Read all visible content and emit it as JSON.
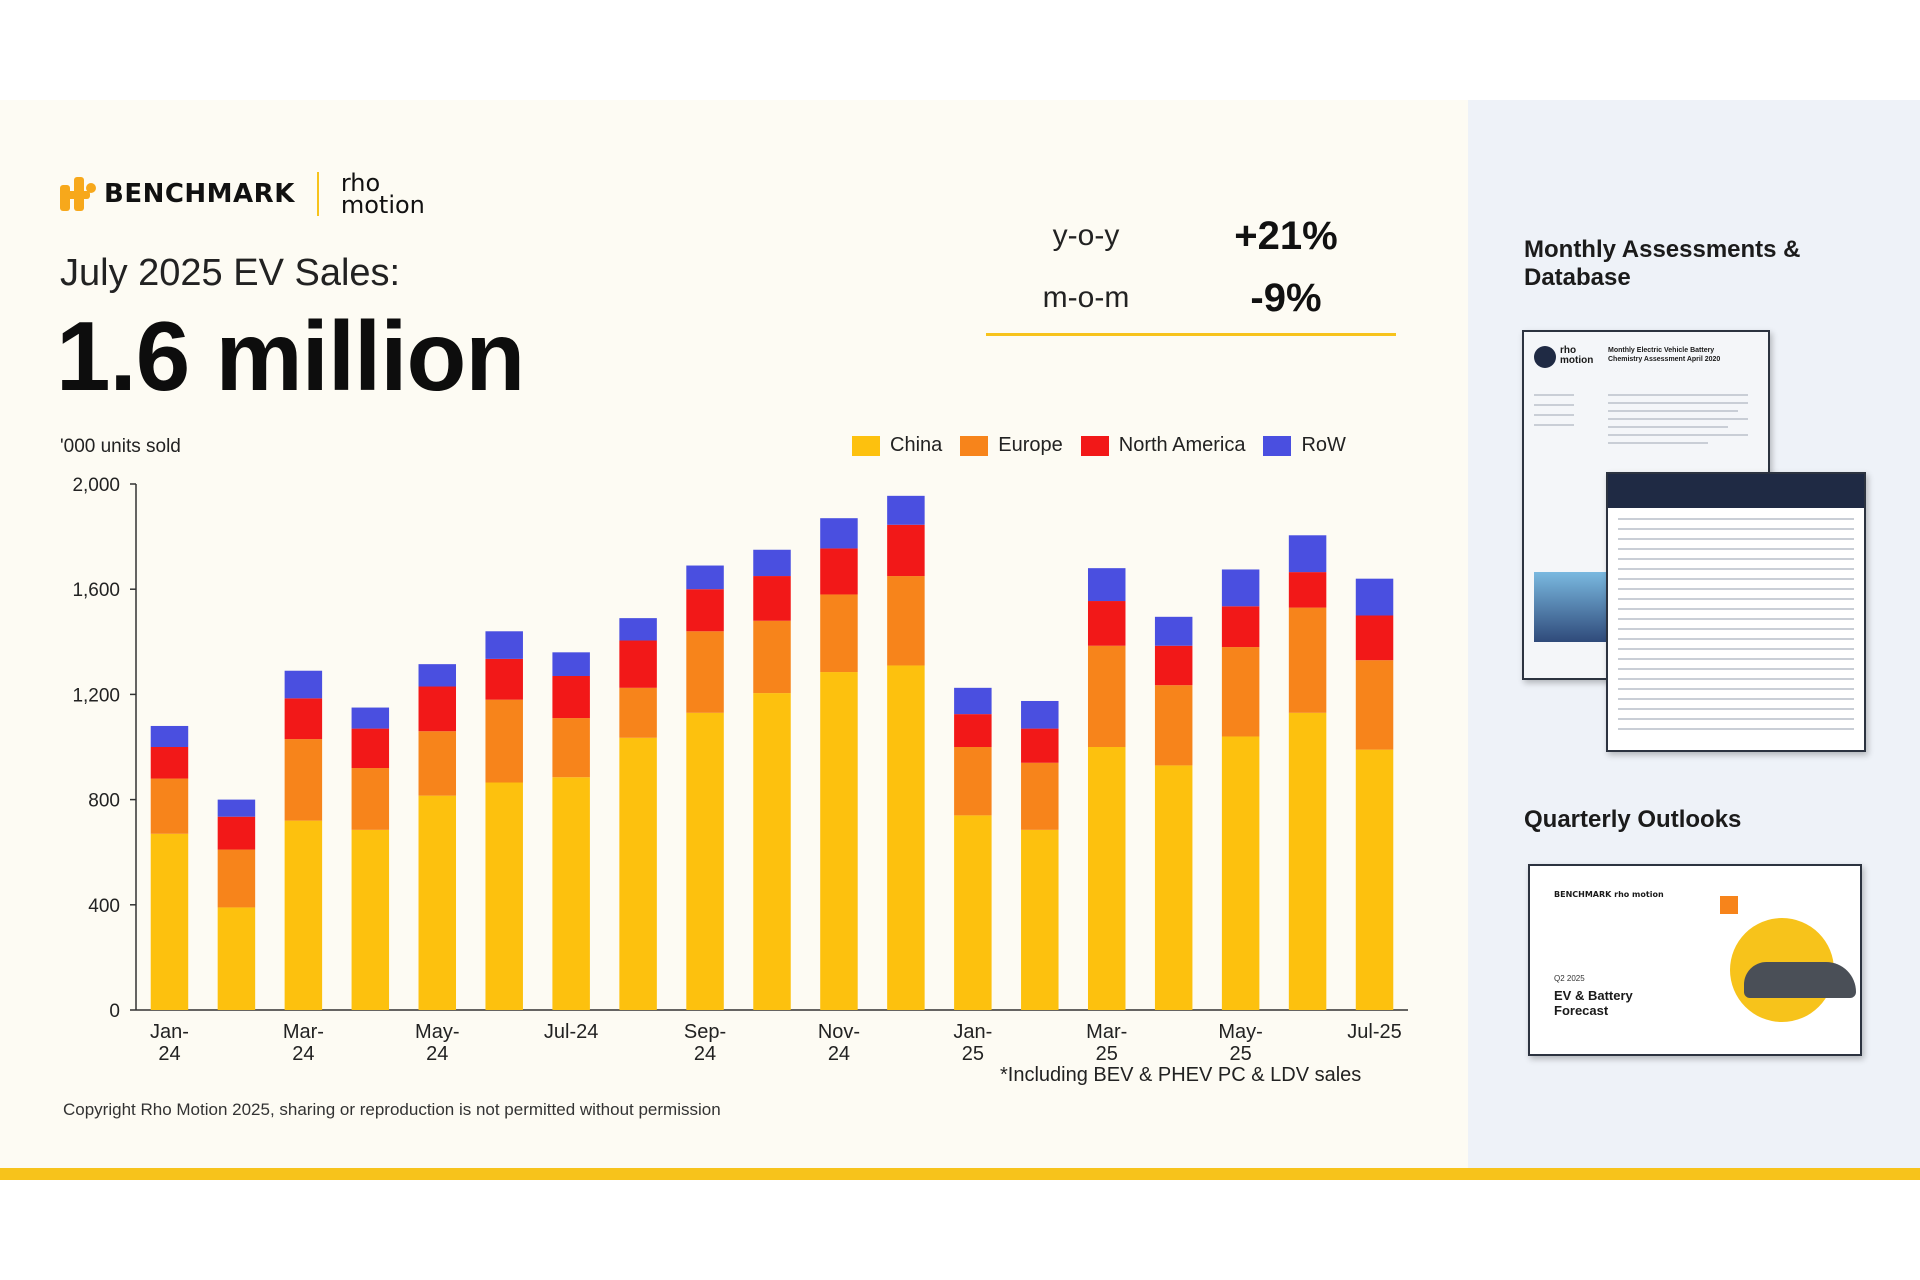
{
  "brand": {
    "benchmark": "BENCHMARK",
    "rho_line1": "rho",
    "rho_line2": "motion"
  },
  "headline": {
    "subtitle": "July 2025 EV Sales:",
    "value": "1.6 million"
  },
  "kpis": [
    {
      "label": "y-o-y",
      "value": "+21%"
    },
    {
      "label": "m-o-m",
      "value": "-9%"
    }
  ],
  "units_label": "'000 units sold",
  "footnote": "*Including BEV & PHEV PC & LDV sales",
  "copyright": "Copyright Rho Motion 2025, sharing or reproduction is not permitted without permission",
  "right_panel": {
    "title1": "Monthly Assessments & Database",
    "title2": "Quarterly Outlooks",
    "doc1_logo": "rho motion",
    "doc1_heading": "Monthly Electric Vehicle Battery Chemistry Assessment April 2020",
    "cover_logo": "BENCHMARK  rho motion",
    "cover_q": "Q2 2025",
    "cover_title": "EV & Battery Forecast"
  },
  "colors": {
    "China": "#fdc10e",
    "Europe": "#f7841b",
    "North America": "#f21818",
    "RoW": "#4a4fe0",
    "accent": "#f7c31b"
  },
  "chart_data": {
    "type": "bar",
    "stacked": true,
    "ylabel": "'000 units sold",
    "ylim": [
      0,
      2000
    ],
    "yticks": [
      0,
      400,
      800,
      1200,
      1600,
      2000
    ],
    "ytick_labels": [
      "0",
      "400",
      "800",
      "1,200",
      "1,600",
      "2,000"
    ],
    "categories": [
      "Jan-24",
      "Feb-24",
      "Mar-24",
      "Apr-24",
      "May-24",
      "Jun-24",
      "Jul-24",
      "Aug-24",
      "Sep-24",
      "Oct-24",
      "Nov-24",
      "Dec-24",
      "Jan-25",
      "Feb-25",
      "Mar-25",
      "Apr-25",
      "May-25",
      "Jun-25",
      "Jul-25"
    ],
    "xtick_labels": [
      {
        "index": 0,
        "line1": "Jan-",
        "line2": "24"
      },
      {
        "index": 2,
        "line1": "Mar-",
        "line2": "24"
      },
      {
        "index": 4,
        "line1": "May-",
        "line2": "24"
      },
      {
        "index": 6,
        "line1": "Jul-24",
        "line2": ""
      },
      {
        "index": 8,
        "line1": "Sep-",
        "line2": "24"
      },
      {
        "index": 10,
        "line1": "Nov-",
        "line2": "24"
      },
      {
        "index": 12,
        "line1": "Jan-",
        "line2": "25"
      },
      {
        "index": 14,
        "line1": "Mar-",
        "line2": "25"
      },
      {
        "index": 16,
        "line1": "May-",
        "line2": "25"
      },
      {
        "index": 18,
        "line1": "Jul-25",
        "line2": ""
      }
    ],
    "legend_position": "top-right",
    "series": [
      {
        "name": "China",
        "values": [
          670,
          390,
          720,
          685,
          815,
          865,
          885,
          1035,
          1130,
          1205,
          1285,
          1310,
          740,
          685,
          1000,
          930,
          1040,
          1130,
          990
        ]
      },
      {
        "name": "Europe",
        "values": [
          210,
          220,
          310,
          235,
          245,
          315,
          225,
          190,
          310,
          275,
          295,
          340,
          260,
          255,
          385,
          305,
          340,
          400,
          340
        ]
      },
      {
        "name": "North America",
        "values": [
          120,
          125,
          155,
          150,
          170,
          155,
          160,
          180,
          160,
          170,
          175,
          195,
          125,
          130,
          170,
          150,
          155,
          135,
          170
        ]
      },
      {
        "name": "RoW",
        "values": [
          80,
          65,
          105,
          80,
          85,
          105,
          90,
          85,
          90,
          100,
          115,
          110,
          100,
          105,
          125,
          110,
          140,
          140,
          140
        ]
      }
    ]
  }
}
